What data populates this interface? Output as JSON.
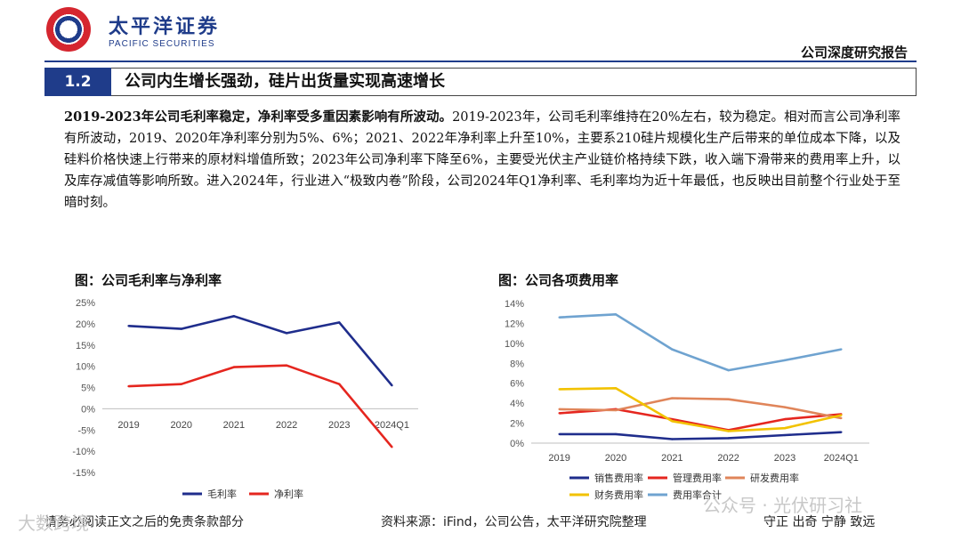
{
  "header": {
    "brand_cn": "太平洋证券",
    "brand_en": "PACIFIC SECURITIES",
    "report_type": "公司深度研究报告"
  },
  "section": {
    "number": "1.2",
    "title": "公司内生增长强劲，硅片出货量实现高速增长"
  },
  "body": {
    "lead": "2019-2023年公司毛利率稳定，净利率受多重因素影响有所波动。",
    "text": "2019-2023年，公司毛利率维持在20%左右，较为稳定。相对而言公司净利率有所波动，2019、2020年净利率分别为5%、6%；2021、2022年净利率上升至10%，主要系210硅片规模化生产后带来的单位成本下降，以及硅料价格快速上行带来的原材料增值所致；2023年公司净利率下降至6%，主要受光伏主产业链价格持续下跌，收入端下滑带来的费用率上升，以及库存减值等影响所致。进入2024年，行业进入“极致内卷”阶段，公司2024年Q1净利率、毛利率均为近十年最低，也反映出目前整个行业处于至暗时刻。"
  },
  "footer": {
    "disclaimer": "请务必阅读正文之后的免责条款部分",
    "source": "资料来源：iFind，公司公告，太平洋研究院整理",
    "motto": "守正  出奇  宁静  致远"
  },
  "watermark": {
    "left": "大数跨境",
    "right": "公众号 · 光伏研习社"
  },
  "chart_data": [
    {
      "type": "line",
      "title": "图：公司毛利率与净利率",
      "categories": [
        "2019",
        "2020",
        "2021",
        "2022",
        "2023",
        "2024Q1"
      ],
      "y_ticks": [
        "25%",
        "20%",
        "15%",
        "10%",
        "5%",
        "0%",
        "-5%",
        "-10%",
        "-15%"
      ],
      "ylim": [
        -15,
        25
      ],
      "series": [
        {
          "name": "毛利率",
          "color": "#1f2d8c",
          "values": [
            19.5,
            18.8,
            21.8,
            17.8,
            20.3,
            5.5
          ]
        },
        {
          "name": "净利率",
          "color": "#e5261f",
          "values": [
            5.3,
            5.8,
            9.8,
            10.2,
            5.8,
            -9.0
          ]
        }
      ]
    },
    {
      "type": "line",
      "title": "图：公司各项费用率",
      "categories": [
        "2019",
        "2020",
        "2021",
        "2022",
        "2023",
        "2024Q1"
      ],
      "y_ticks": [
        "14%",
        "12%",
        "10%",
        "8%",
        "6%",
        "4%",
        "2%",
        "0%"
      ],
      "ylim": [
        0,
        14
      ],
      "series": [
        {
          "name": "销售费用率",
          "color": "#1f2d8c",
          "values": [
            0.9,
            0.9,
            0.4,
            0.5,
            0.8,
            1.1
          ]
        },
        {
          "name": "管理费用率",
          "color": "#e5261f",
          "values": [
            3.0,
            3.4,
            2.4,
            1.3,
            2.4,
            2.9
          ]
        },
        {
          "name": "研发费用率",
          "color": "#e0855a",
          "values": [
            3.4,
            3.3,
            4.5,
            4.4,
            3.6,
            2.5
          ]
        },
        {
          "name": "财务费用率",
          "color": "#f2c200",
          "values": [
            5.4,
            5.5,
            2.2,
            1.2,
            1.5,
            2.8
          ]
        },
        {
          "name": "费用率合计",
          "color": "#6fa3d0",
          "values": [
            12.6,
            12.9,
            9.4,
            7.3,
            8.3,
            9.4
          ]
        }
      ]
    }
  ]
}
